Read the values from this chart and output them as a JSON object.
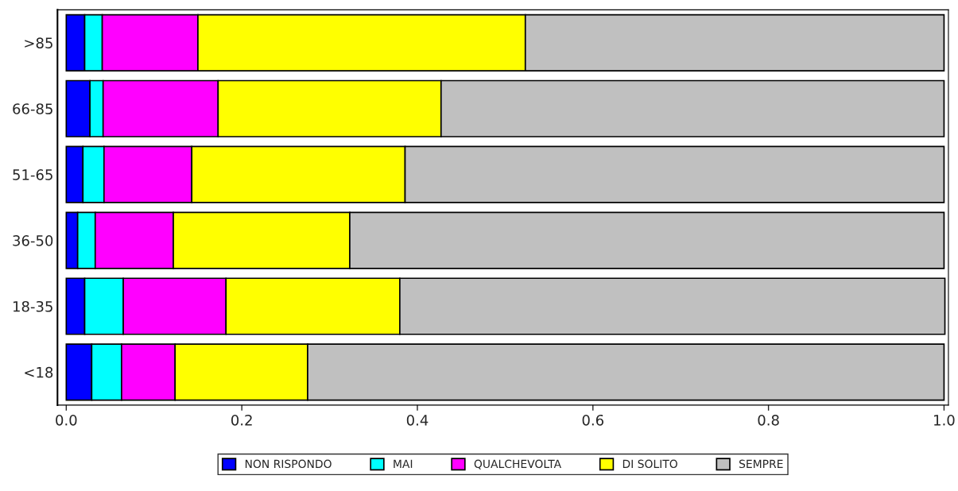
{
  "chart_data": {
    "type": "bar",
    "orientation": "horizontal",
    "stacked": true,
    "categories": [
      ">85",
      "66-85",
      "51-65",
      "36-50",
      "18-35",
      "<18"
    ],
    "series": [
      {
        "name": "NON RISPONDO",
        "color": "#0000ff",
        "values": [
          0.021,
          0.027,
          0.019,
          0.013,
          0.021,
          0.029
        ]
      },
      {
        "name": "MAI",
        "color": "#00ffff",
        "values": [
          0.02,
          0.015,
          0.024,
          0.02,
          0.044,
          0.034
        ]
      },
      {
        "name": "QUALCHEVOLTA",
        "color": "#ff00ff",
        "values": [
          0.109,
          0.131,
          0.1,
          0.089,
          0.117,
          0.061
        ]
      },
      {
        "name": "DI SOLITO",
        "color": "#ffff00",
        "values": [
          0.373,
          0.254,
          0.243,
          0.201,
          0.198,
          0.151
        ]
      },
      {
        "name": "SEMPRE",
        "color": "#c0c0c0",
        "values": [
          0.477,
          0.573,
          0.614,
          0.677,
          0.621,
          0.725
        ]
      }
    ],
    "xlim": [
      -0.01,
      1.005
    ],
    "xticks": [
      {
        "value": 0,
        "label": "0.0"
      },
      0.2,
      0.4,
      0.6,
      0.8,
      {
        "value": 1,
        "label": "1.0"
      }
    ],
    "grid": false,
    "legend": "bottom"
  }
}
